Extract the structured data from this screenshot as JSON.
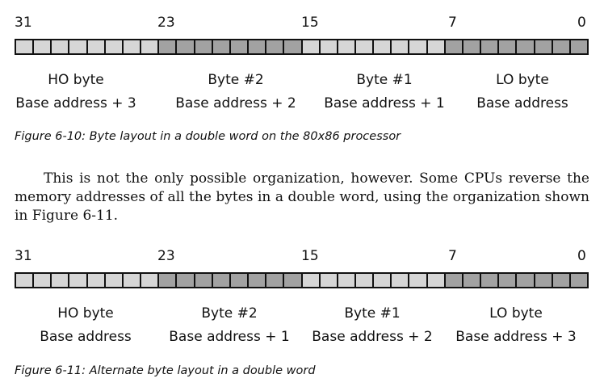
{
  "figure1": {
    "bit_labels": [
      "31",
      "23",
      "15",
      "7",
      "0"
    ],
    "bytes": [
      {
        "name": "HO byte",
        "address": "Base address + 3"
      },
      {
        "name": "Byte #2",
        "address": "Base address + 2"
      },
      {
        "name": "Byte #1",
        "address": "Base address + 1"
      },
      {
        "name": "LO byte",
        "address": "Base address"
      }
    ],
    "caption": "Figure 6-10: Byte layout in a double word on the 80x86 processor"
  },
  "paragraph": {
    "text": "This is not the only possible organization, however. Some CPUs reverse the memory addresses of all the bytes in a double word, using the organization shown in Figure 6-11."
  },
  "figure2": {
    "bit_labels": [
      "31",
      "23",
      "15",
      "7",
      "0"
    ],
    "bytes": [
      {
        "name": "HO byte",
        "address": "Base address"
      },
      {
        "name": "Byte #2",
        "address": "Base address + 1"
      },
      {
        "name": "Byte #1",
        "address": "Base address + 2"
      },
      {
        "name": "LO byte",
        "address": "Base address + 3"
      }
    ],
    "caption": "Figure 6-11: Alternate byte layout in a double word"
  },
  "colors": {
    "light_cell": "#d6d6d6",
    "dark_cell": "#a2a2a2",
    "outline": "#111111"
  }
}
